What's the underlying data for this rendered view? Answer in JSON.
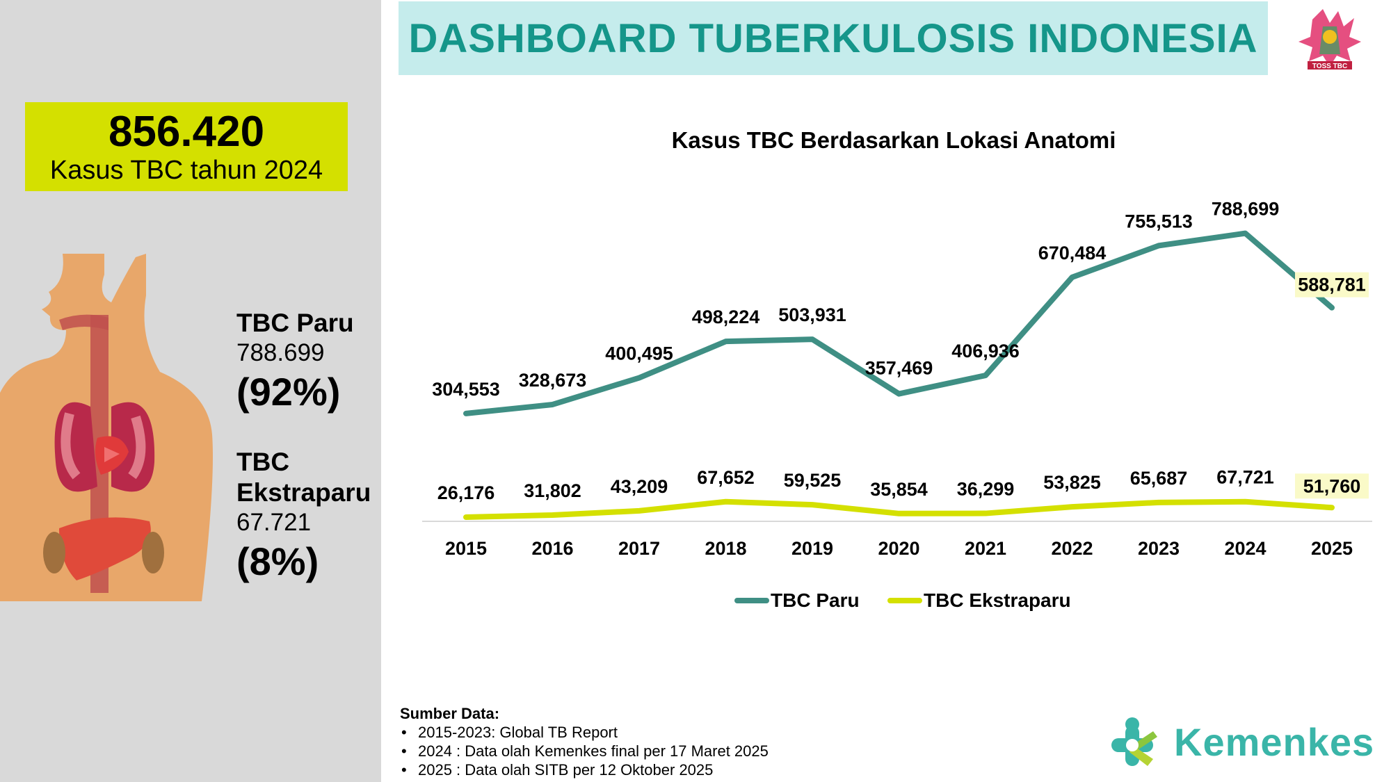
{
  "header": {
    "title": "DASHBOARD TUBERKULOSIS INDONESIA"
  },
  "summary": {
    "total_value": "856.420",
    "total_label": "Kasus TBC tahun 2024"
  },
  "paru": {
    "title": "TBC Paru",
    "value": "788.699",
    "pct": "(92%)"
  },
  "ekstraparu": {
    "title_line1": "TBC",
    "title_line2": "Ekstraparu",
    "value": "67.721",
    "pct": "(8%)"
  },
  "logo_toss": {
    "text": "TOSS TBC"
  },
  "chart_data": {
    "type": "line",
    "title": "Kasus TBC Berdasarkan Lokasi Anatomi",
    "categories": [
      "2015",
      "2016",
      "2017",
      "2018",
      "2019",
      "2020",
      "2021",
      "2022",
      "2023",
      "2024",
      "2025"
    ],
    "series": [
      {
        "name": "TBC Paru",
        "color": "#3f8f84",
        "values": [
          304553,
          328673,
          400495,
          498224,
          503931,
          357469,
          406936,
          670484,
          755513,
          788699,
          588781
        ],
        "labels": [
          "304,553",
          "328,673",
          "400,495",
          "498,224",
          "503,931",
          "357,469",
          "406,936",
          "670,484",
          "755,513",
          "788,699",
          "588,781"
        ]
      },
      {
        "name": "TBC Ekstraparu",
        "color": "#d4e000",
        "values": [
          26176,
          31802,
          43209,
          67652,
          59525,
          35854,
          36299,
          53825,
          65687,
          67721,
          51760
        ],
        "labels": [
          "26,176",
          "31,802",
          "43,209",
          "67,652",
          "59,525",
          "35,854",
          "36,299",
          "53,825",
          "65,687",
          "67,721",
          "51,760"
        ]
      }
    ],
    "highlighted_last_label_color": "#fafac8",
    "ylim": [
      0,
      900000
    ],
    "grid": false,
    "legend": "bottom"
  },
  "source": {
    "title": "Sumber Data:",
    "items": [
      "2015-2023: Global TB Report",
      "2024 : Data olah Kemenkes final per 17 Maret 2025",
      "2025 : Data olah SITB per 12 Oktober 2025"
    ]
  },
  "brand": {
    "name": "Kemenkes"
  }
}
